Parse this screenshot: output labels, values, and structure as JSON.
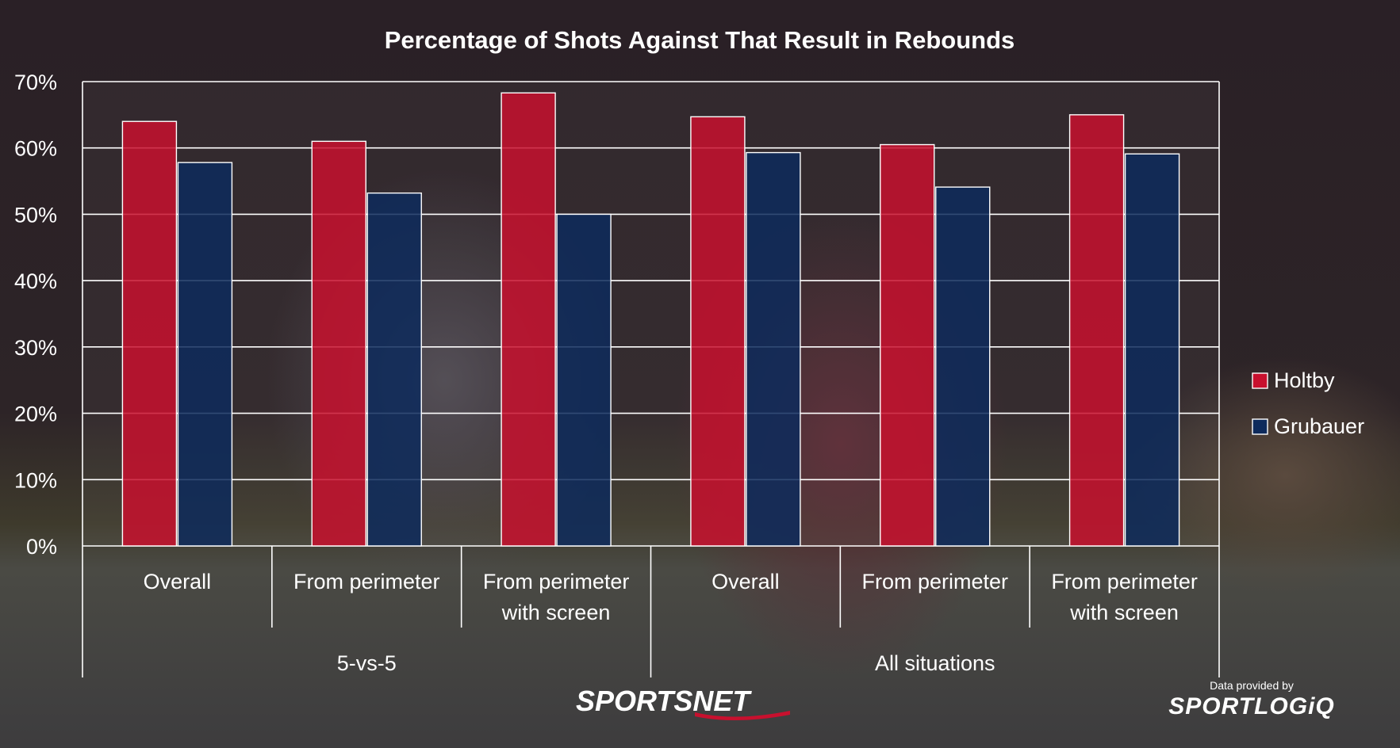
{
  "chart_data": {
    "type": "bar",
    "title": "Percentage of Shots Against That Result in Rebounds",
    "xlabel": "",
    "ylabel": "",
    "ylim": [
      0,
      70
    ],
    "y_ticks": [
      "0%",
      "10%",
      "20%",
      "30%",
      "40%",
      "50%",
      "60%",
      "70%"
    ],
    "y_tick_values": [
      0,
      10,
      20,
      30,
      40,
      50,
      60,
      70
    ],
    "categories": [
      "Overall",
      "From perimeter",
      "From perimeter with screen",
      "Overall",
      "From perimeter",
      "From perimeter with screen"
    ],
    "category_lines": [
      [
        "Overall"
      ],
      [
        "From perimeter"
      ],
      [
        "From perimeter",
        "with screen"
      ],
      [
        "Overall"
      ],
      [
        "From perimeter"
      ],
      [
        "From perimeter",
        "with screen"
      ]
    ],
    "groups": [
      {
        "label": "5-vs-5",
        "span": [
          0,
          2
        ]
      },
      {
        "label": "All situations",
        "span": [
          3,
          5
        ]
      }
    ],
    "series": [
      {
        "name": "Holtby",
        "color": "#c8102e",
        "values": [
          64,
          61,
          68.3,
          64.7,
          60.5,
          65
        ]
      },
      {
        "name": "Grubauer",
        "color": "#0d2a5c",
        "values": [
          57.8,
          53.2,
          50,
          59.3,
          54.1,
          59.1
        ]
      }
    ],
    "grid": true,
    "legend_position": "right"
  },
  "branding": {
    "sportsnet": "SPORTSNET",
    "data_provided_by": "Data provided by",
    "sportlogiq": "SPORTLOGiQ"
  }
}
